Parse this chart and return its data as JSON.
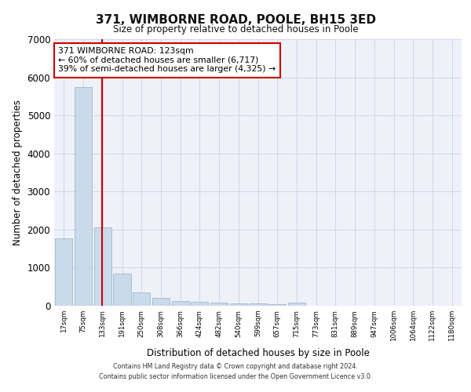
{
  "title": "371, WIMBORNE ROAD, POOLE, BH15 3ED",
  "subtitle": "Size of property relative to detached houses in Poole",
  "xlabel": "Distribution of detached houses by size in Poole",
  "ylabel": "Number of detached properties",
  "bar_labels": [
    "17sqm",
    "75sqm",
    "133sqm",
    "191sqm",
    "250sqm",
    "308sqm",
    "366sqm",
    "424sqm",
    "482sqm",
    "540sqm",
    "599sqm",
    "657sqm",
    "715sqm",
    "773sqm",
    "831sqm",
    "889sqm",
    "947sqm",
    "1006sqm",
    "1064sqm",
    "1122sqm",
    "1180sqm"
  ],
  "bar_heights": [
    1780,
    5750,
    2060,
    840,
    340,
    200,
    130,
    100,
    90,
    70,
    55,
    45,
    80,
    0,
    0,
    0,
    0,
    0,
    0,
    0,
    0
  ],
  "bar_color": "#c9daea",
  "bar_edge_color": "#a0b8d0",
  "grid_color": "#d0d8e8",
  "background_color": "#eef2f8",
  "vline_color": "#cc0000",
  "annotation_text": "371 WIMBORNE ROAD: 123sqm\n← 60% of detached houses are smaller (6,717)\n39% of semi-detached houses are larger (4,325) →",
  "annotation_box_color": "#ffffff",
  "annotation_box_edge": "#cc0000",
  "ylim": [
    0,
    7000
  ],
  "yticks": [
    0,
    1000,
    2000,
    3000,
    4000,
    5000,
    6000,
    7000
  ],
  "footer_line1": "Contains HM Land Registry data © Crown copyright and database right 2024.",
  "footer_line2": "Contains public sector information licensed under the Open Government Licence v3.0."
}
